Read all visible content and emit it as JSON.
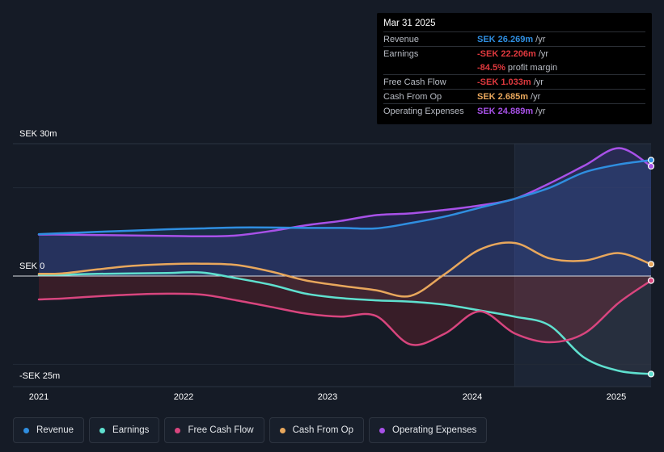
{
  "tooltip": {
    "date": "Mar 31 2025",
    "rows": [
      {
        "label": "Revenue",
        "value": "SEK 26.269m",
        "unit": "/yr",
        "color": "#2f8ee0"
      },
      {
        "label": "Earnings",
        "value": "-SEK 22.206m",
        "unit": "/yr",
        "color": "#e0393e"
      },
      {
        "label": "",
        "value": "-84.5%",
        "unit": "profit margin",
        "color": "#e0393e"
      },
      {
        "label": "Free Cash Flow",
        "value": "-SEK 1.033m",
        "unit": "/yr",
        "color": "#e0393e"
      },
      {
        "label": "Cash From Op",
        "value": "SEK 2.685m",
        "unit": "/yr",
        "color": "#e8a75c"
      },
      {
        "label": "Operating Expenses",
        "value": "SEK 24.889m",
        "unit": "/yr",
        "color": "#a851e8"
      }
    ]
  },
  "chart_data": {
    "type": "line",
    "ylabels": {
      "top": "SEK 30m",
      "zero": "SEK 0",
      "bottom": "-SEK 25m"
    },
    "ylim": [
      -25,
      30
    ],
    "x_ticks": [
      "2021",
      "2022",
      "2023",
      "2024",
      "2025"
    ],
    "x": [
      2020.83,
      2021.0,
      2021.25,
      2021.5,
      2021.75,
      2022.0,
      2022.25,
      2022.5,
      2022.75,
      2023.0,
      2023.25,
      2023.5,
      2023.75,
      2024.0,
      2024.25,
      2024.5,
      2024.75,
      2025.0,
      2025.23
    ],
    "series": [
      {
        "name": "Revenue",
        "color": "#2f8ee0",
        "values": [
          9.5,
          9.7,
          10.0,
          10.3,
          10.6,
          10.8,
          11.0,
          11.0,
          10.9,
          10.9,
          10.8,
          12.0,
          13.5,
          15.5,
          17.5,
          20.0,
          23.5,
          25.3,
          26.27
        ]
      },
      {
        "name": "Earnings",
        "color": "#5fe0cf",
        "values": [
          0.3,
          0.3,
          0.5,
          0.6,
          0.7,
          0.8,
          -0.5,
          -2.0,
          -4.0,
          -5.0,
          -5.5,
          -5.8,
          -6.5,
          -7.8,
          -9.2,
          -11.2,
          -18.5,
          -21.5,
          -22.21
        ]
      },
      {
        "name": "Free Cash Flow",
        "color": "#d8457e",
        "values": [
          -5.3,
          -5.1,
          -4.6,
          -4.2,
          -4.0,
          -4.2,
          -5.5,
          -7.0,
          -8.5,
          -9.2,
          -9.0,
          -15.5,
          -13.0,
          -8.0,
          -13.0,
          -15.0,
          -13.0,
          -6.0,
          -1.03
        ]
      },
      {
        "name": "Cash From Op",
        "color": "#e8a75c",
        "values": [
          0.5,
          0.6,
          1.5,
          2.3,
          2.7,
          2.8,
          2.5,
          1.0,
          -1.0,
          -2.2,
          -3.2,
          -4.5,
          0.5,
          6.0,
          7.5,
          4.0,
          3.5,
          5.2,
          2.69
        ]
      },
      {
        "name": "Operating Expenses",
        "color": "#a851e8",
        "values": [
          9.4,
          9.4,
          9.3,
          9.2,
          9.1,
          9.0,
          9.2,
          10.2,
          11.5,
          12.5,
          13.8,
          14.2,
          15.0,
          16.0,
          17.5,
          21.0,
          25.0,
          29.0,
          24.89
        ]
      }
    ]
  },
  "legend": [
    {
      "name": "Revenue",
      "color": "#2f8ee0"
    },
    {
      "name": "Earnings",
      "color": "#5fe0cf"
    },
    {
      "name": "Free Cash Flow",
      "color": "#d8457e"
    },
    {
      "name": "Cash From Op",
      "color": "#e8a75c"
    },
    {
      "name": "Operating Expenses",
      "color": "#a851e8"
    }
  ]
}
